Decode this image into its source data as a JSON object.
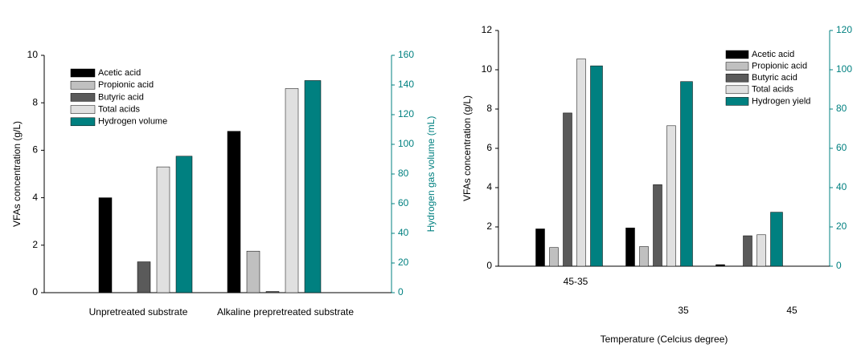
{
  "chart_data": [
    {
      "type": "bar",
      "categories": [
        "Unpretreated substrate",
        "Alkaline prepretreated substrate"
      ],
      "ylabel": "VFAs concentration (g/L)",
      "y2label": "Hydrogen gas volume (mL)",
      "ylim": [
        0,
        10
      ],
      "yticks": [
        0,
        2,
        4,
        6,
        8,
        10
      ],
      "y2lim": [
        0,
        160
      ],
      "y2ticks": [
        0,
        20,
        40,
        60,
        80,
        100,
        120,
        140,
        160
      ],
      "y2color": "#008080",
      "series": [
        {
          "name": "Acetic acid",
          "color": "#000000",
          "values": [
            4.0,
            6.8
          ]
        },
        {
          "name": "Propionic acid",
          "color": "#c0c0c0",
          "values": [
            0,
            1.75
          ]
        },
        {
          "name": "Butyric acid",
          "color": "#5a5a5a",
          "values": [
            1.3,
            0.05
          ]
        },
        {
          "name": "Total acids",
          "color": "#e0e0e0",
          "values": [
            5.3,
            8.6
          ]
        },
        {
          "name": "Hydrogen volume",
          "color": "#008080",
          "axis": "y2",
          "values": [
            92,
            143
          ]
        }
      ]
    },
    {
      "type": "bar",
      "categories": [
        "45-35",
        "35",
        "45"
      ],
      "ylabel": "VFAs concentration (g/L)",
      "xlabel": "Temperature (Celcius degree)",
      "ylim": [
        0,
        12
      ],
      "yticks": [
        0,
        2,
        4,
        6,
        8,
        10,
        12
      ],
      "y2lim": [
        0,
        120
      ],
      "y2ticks": [
        0,
        20,
        40,
        60,
        80,
        100,
        120
      ],
      "y2color": "#008080",
      "series": [
        {
          "name": "Acetic acid",
          "color": "#000000",
          "values": [
            1.9,
            1.95,
            0.08
          ]
        },
        {
          "name": "Propionic acid",
          "color": "#c0c0c0",
          "values": [
            0.95,
            1.0,
            0
          ]
        },
        {
          "name": "Butyric acid",
          "color": "#5a5a5a",
          "values": [
            7.8,
            4.15,
            1.55
          ]
        },
        {
          "name": "Total acids",
          "color": "#e0e0e0",
          "values": [
            10.55,
            7.15,
            1.6
          ]
        },
        {
          "name": "Hydrogen yield",
          "color": "#008080",
          "axis": "y2",
          "values": [
            102,
            94,
            27.5
          ]
        }
      ]
    }
  ]
}
